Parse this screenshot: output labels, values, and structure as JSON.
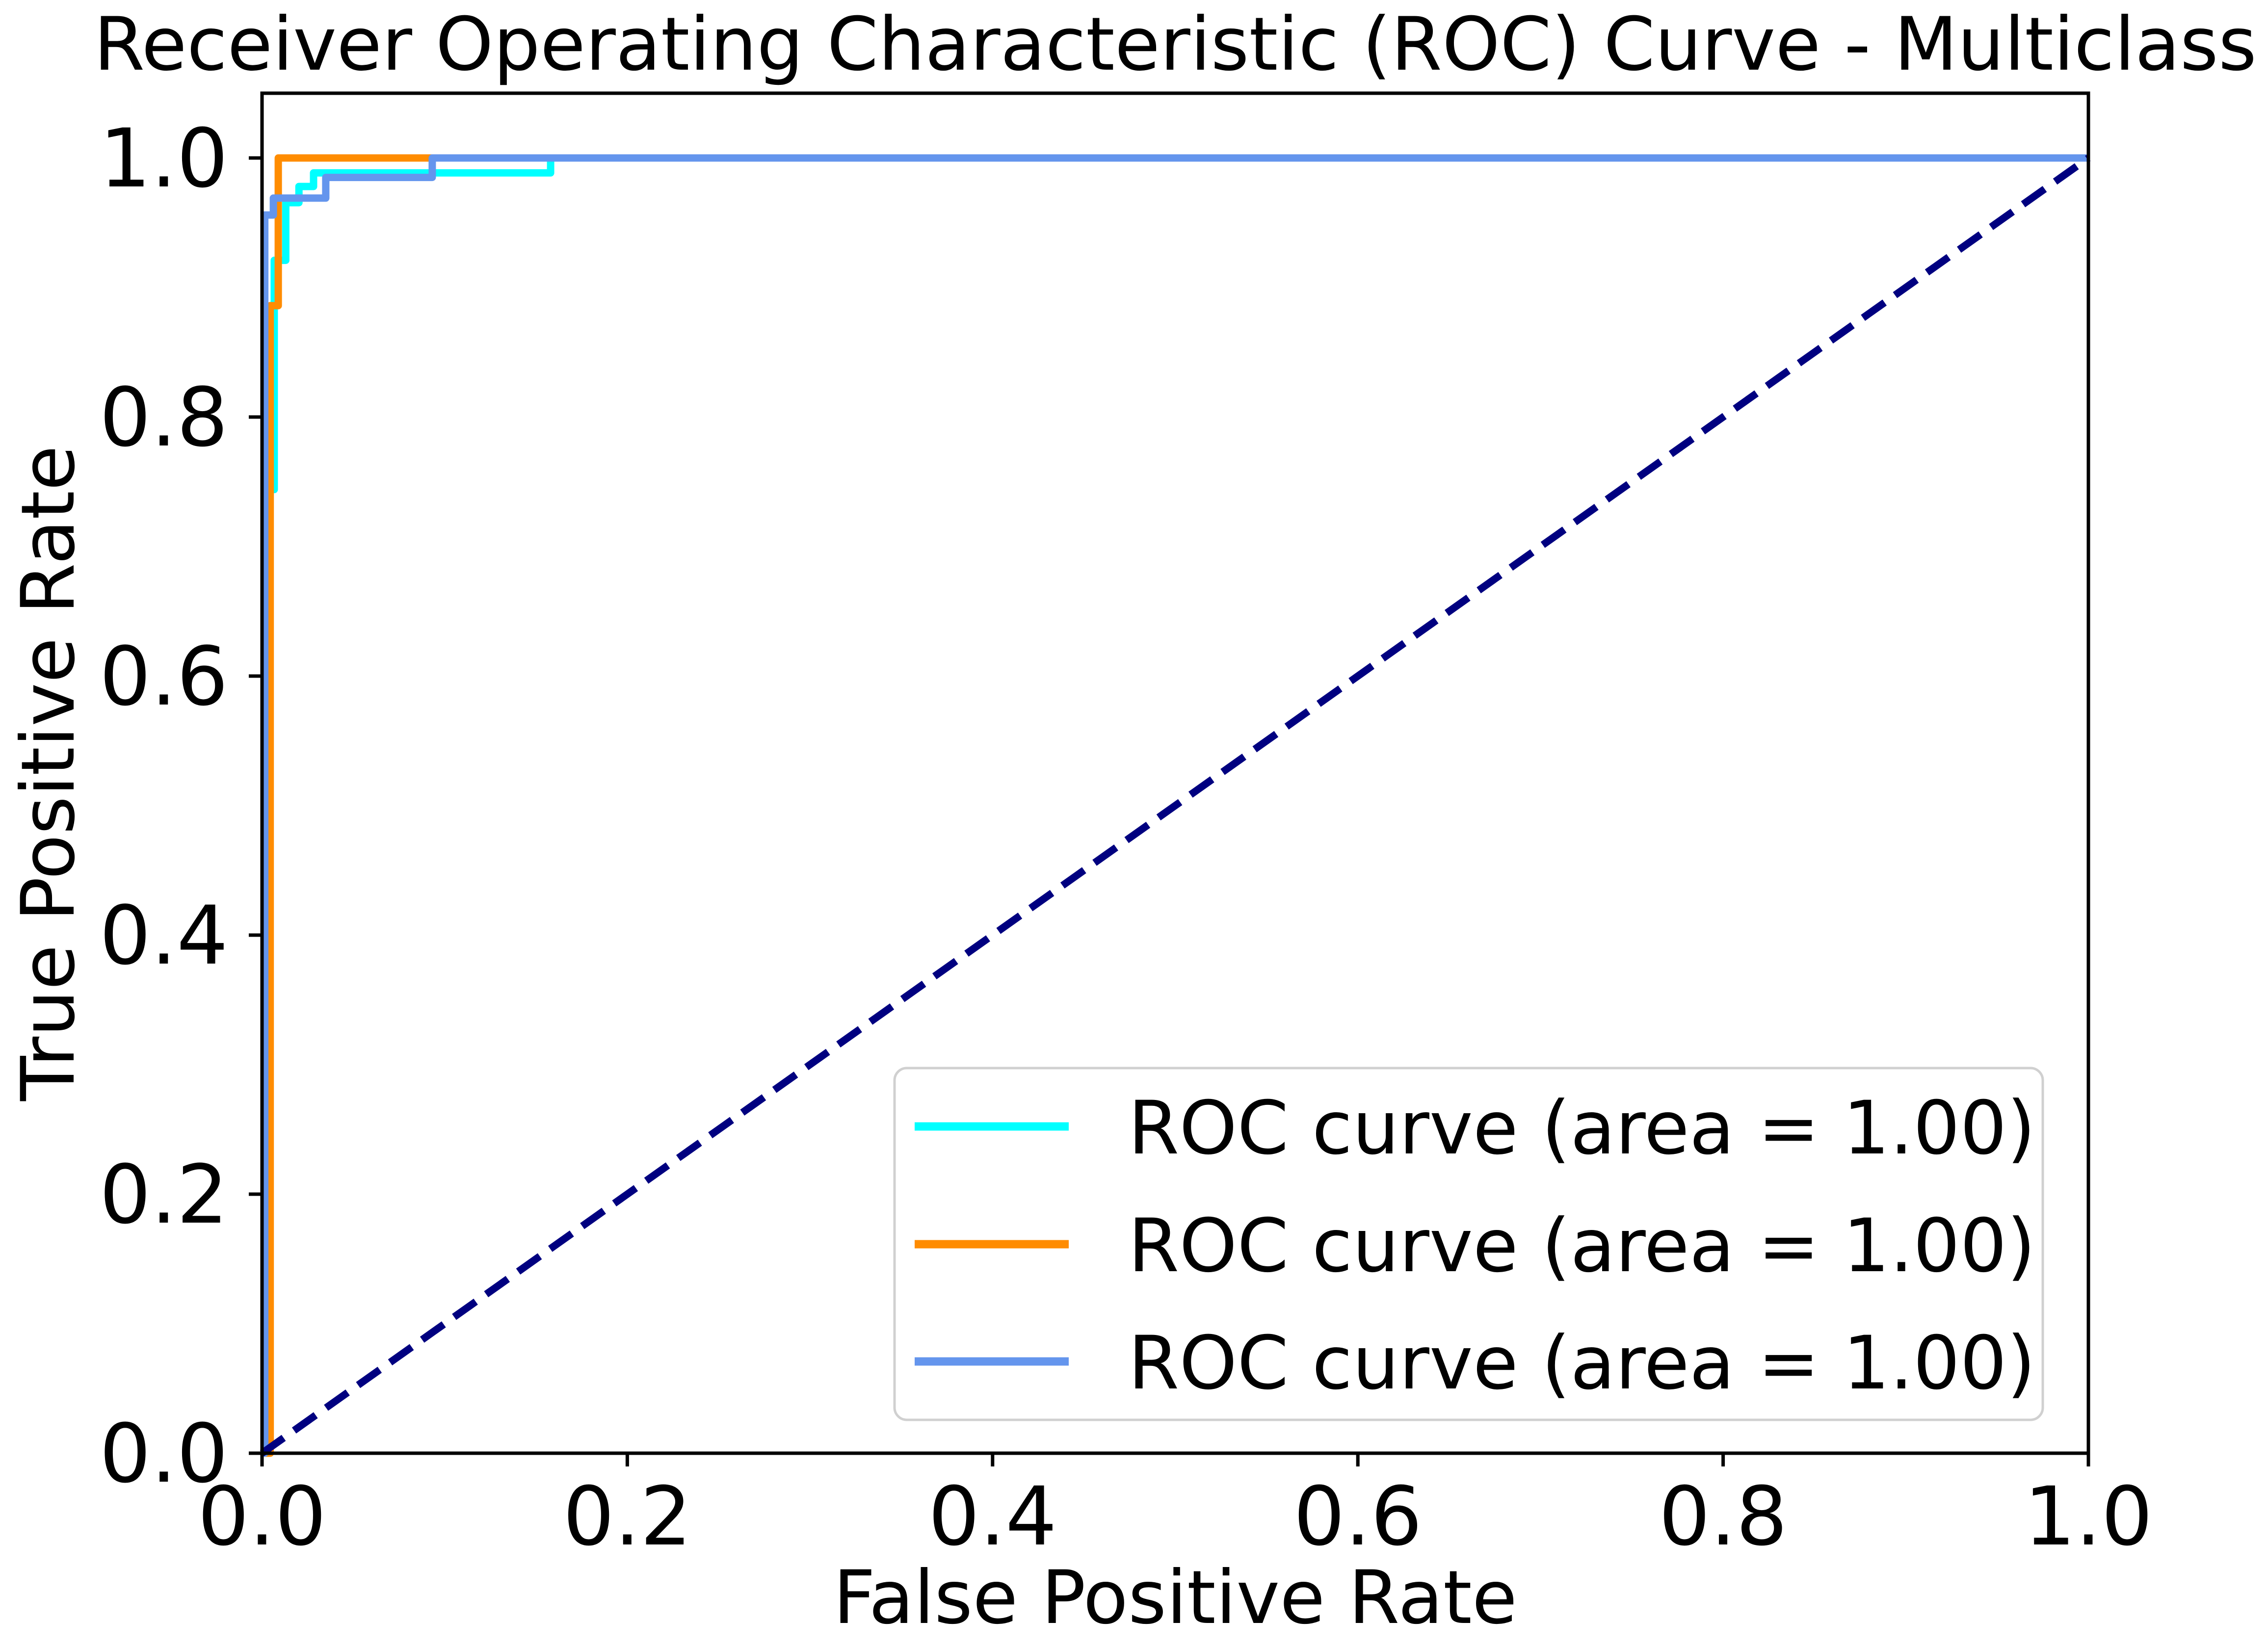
{
  "figure": {
    "background_color": "#FFFFFF",
    "axis_color": "#000000",
    "legend_border_color": "#D0D0D0",
    "legend_background_color": "#FFFFFF"
  },
  "chart_data": {
    "type": "line",
    "subtype": "roc-step-curves",
    "title": "Receiver Operating Characteristic (ROC) Curve - Multiclass",
    "xlabel": "False Positive Rate",
    "ylabel": "True Positive Rate",
    "xlim": [
      0.0,
      1.0
    ],
    "ylim": [
      0.0,
      1.05
    ],
    "grid": false,
    "xticks": {
      "values": [
        0.0,
        0.2,
        0.4,
        0.6,
        0.8,
        1.0
      ],
      "labels": [
        "0.0",
        "0.2",
        "0.4",
        "0.6",
        "0.8",
        "1.0"
      ]
    },
    "yticks": {
      "values": [
        0.0,
        0.2,
        0.4,
        0.6,
        0.8,
        1.0
      ],
      "labels": [
        "0.0",
        "0.2",
        "0.4",
        "0.6",
        "0.8",
        "1.0"
      ]
    },
    "series": [
      {
        "name": "ROC curve (area = 1.00)",
        "auc": "1.00",
        "color": "#00FFFF",
        "color_name": "aqua",
        "points": [
          [
            0.0,
            0.0
          ],
          [
            0.004,
            0.0
          ],
          [
            0.004,
            0.744
          ],
          [
            0.0067,
            0.744
          ],
          [
            0.0067,
            0.921
          ],
          [
            0.013,
            0.921
          ],
          [
            0.013,
            0.9655
          ],
          [
            0.0202,
            0.9655
          ],
          [
            0.0202,
            0.978
          ],
          [
            0.0282,
            0.978
          ],
          [
            0.0282,
            0.9885
          ],
          [
            0.158,
            0.9885
          ],
          [
            0.158,
            1.0
          ],
          [
            1.0,
            1.0
          ]
        ]
      },
      {
        "name": "ROC curve (area = 1.00)",
        "auc": "1.00",
        "color": "#FF8C00",
        "color_name": "darkorange",
        "points": [
          [
            0.0,
            0.0
          ],
          [
            0.0045,
            0.0
          ],
          [
            0.0045,
            0.886
          ],
          [
            0.0089,
            0.886
          ],
          [
            0.0089,
            1.0
          ],
          [
            1.0,
            1.0
          ]
        ]
      },
      {
        "name": "ROC curve (area = 1.00)",
        "auc": "1.00",
        "color": "#6495ED",
        "color_name": "cornflowerblue",
        "points": [
          [
            0.0,
            0.0
          ],
          [
            0.0015,
            0.0
          ],
          [
            0.0015,
            0.956
          ],
          [
            0.0062,
            0.956
          ],
          [
            0.0062,
            0.969
          ],
          [
            0.0349,
            0.969
          ],
          [
            0.0349,
            0.985
          ],
          [
            0.0932,
            0.985
          ],
          [
            0.0932,
            1.0
          ],
          [
            1.0,
            1.0
          ]
        ]
      }
    ],
    "reference_line": {
      "name": "chance-diagonal",
      "color": "#000080",
      "color_name": "navy",
      "style": "dashed",
      "points": [
        [
          0.0,
          0.0
        ],
        [
          1.0,
          1.0
        ]
      ]
    },
    "legend": {
      "position": "lower right",
      "entries": [
        {
          "label": "ROC curve (area = 1.00)",
          "color": "#00FFFF"
        },
        {
          "label": "ROC curve (area = 1.00)",
          "color": "#FF8C00"
        },
        {
          "label": "ROC curve (area = 1.00)",
          "color": "#6495ED"
        }
      ]
    }
  }
}
